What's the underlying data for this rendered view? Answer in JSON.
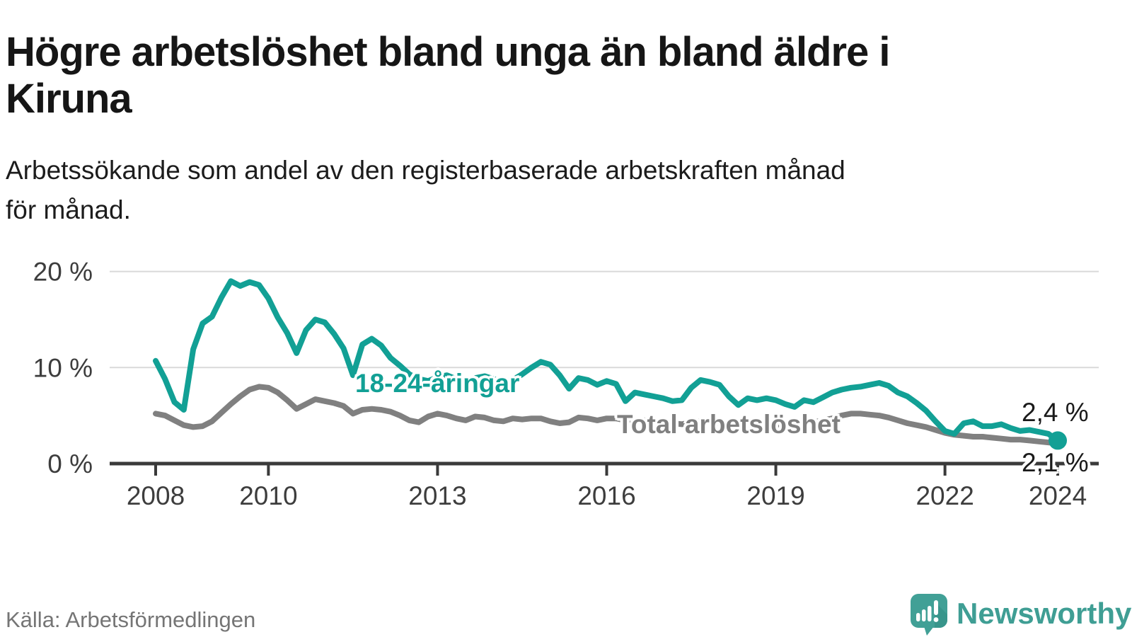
{
  "header": {
    "title_lines": [
      "Högre arbetslöshet bland unga än bland äldre i",
      "Kiruna"
    ],
    "subtitle_lines": [
      "Arbetssökande som andel av den registerbaserade arbetskraften månad",
      "för månad."
    ]
  },
  "footer": {
    "source": "Källa: Arbetsförmedlingen",
    "brand": "Newsworthy"
  },
  "colors": {
    "accent_teal": "#12a095",
    "line_gray": "#808080",
    "brand_teal": "#3f9e94",
    "axis_dark": "#3a3a3a",
    "grid_light": "#d9d9d9"
  },
  "chart_data": {
    "type": "line",
    "title": "Högre arbetslöshet bland unga än bland äldre i Kiruna",
    "xlabel": "",
    "ylabel": "",
    "unit": "%",
    "grid": "horizontal",
    "legend": "inline-labels",
    "xlim": [
      2007.2,
      2024.7
    ],
    "ylim": [
      0,
      20
    ],
    "yticks": [
      {
        "value": 0,
        "label": "0 %"
      },
      {
        "value": 10,
        "label": "10 %"
      },
      {
        "value": 20,
        "label": "20 %"
      }
    ],
    "xticks": [
      {
        "value": 2008,
        "label": "2008"
      },
      {
        "value": 2010,
        "label": "2010"
      },
      {
        "value": 2013,
        "label": "2013"
      },
      {
        "value": 2016,
        "label": "2016"
      },
      {
        "value": 2019,
        "label": "2019"
      },
      {
        "value": 2022,
        "label": "2022"
      },
      {
        "value": 2024,
        "label": "2024"
      }
    ],
    "series": [
      {
        "name": "18-24-åringar",
        "color": "#12a095",
        "end_label": "2,4 %",
        "end_value": 2.4,
        "end_dot": true,
        "x_start": 2008.0,
        "x_step": 0.16667,
        "values": [
          10.7,
          8.8,
          6.4,
          5.6,
          11.9,
          14.6,
          15.3,
          17.3,
          19.0,
          18.5,
          18.9,
          18.6,
          17.2,
          15.2,
          13.6,
          11.5,
          13.9,
          15.0,
          14.7,
          13.5,
          12.0,
          9.2,
          12.4,
          13.0,
          12.3,
          11.0,
          10.2,
          9.3,
          8.8,
          8.6,
          9.0,
          9.2,
          8.8,
          8.6,
          8.9,
          9.1,
          8.8,
          8.5,
          8.7,
          9.3,
          10.0,
          10.6,
          10.3,
          9.2,
          7.8,
          8.9,
          8.7,
          8.2,
          8.6,
          8.3,
          6.5,
          7.4,
          7.2,
          7.0,
          6.8,
          6.5,
          6.6,
          7.9,
          8.7,
          8.5,
          8.2,
          7.0,
          6.1,
          6.8,
          6.6,
          6.8,
          6.6,
          6.2,
          5.9,
          6.6,
          6.4,
          6.9,
          7.4,
          7.7,
          7.9,
          8.0,
          8.2,
          8.4,
          8.1,
          7.4,
          7.0,
          6.3,
          5.5,
          4.4,
          3.4,
          3.1,
          4.2,
          4.4,
          3.9,
          3.9,
          4.1,
          3.7,
          3.4,
          3.5,
          3.3,
          3.1,
          2.4
        ]
      },
      {
        "name": "Total arbetslöshet",
        "color": "#808080",
        "end_label": "2,1 %",
        "end_value": 2.1,
        "end_dot": false,
        "x_start": 2008.0,
        "x_step": 0.16667,
        "values": [
          5.2,
          5.0,
          4.5,
          4.0,
          3.8,
          3.9,
          4.4,
          5.3,
          6.2,
          7.0,
          7.7,
          8.0,
          7.9,
          7.4,
          6.6,
          5.7,
          6.2,
          6.7,
          6.5,
          6.3,
          6.0,
          5.2,
          5.6,
          5.7,
          5.6,
          5.4,
          5.0,
          4.5,
          4.3,
          4.9,
          5.2,
          5.0,
          4.7,
          4.5,
          4.9,
          4.8,
          4.5,
          4.4,
          4.7,
          4.6,
          4.7,
          4.7,
          4.4,
          4.2,
          4.3,
          4.8,
          4.7,
          4.5,
          4.7,
          4.7,
          4.5,
          4.4,
          4.5,
          4.4,
          4.3,
          4.2,
          4.1,
          4.3,
          4.4,
          4.3,
          4.2,
          4.0,
          3.9,
          4.0,
          4.1,
          4.0,
          4.1,
          4.0,
          4.1,
          4.2,
          4.3,
          4.5,
          4.7,
          5.0,
          5.2,
          5.2,
          5.1,
          5.0,
          4.8,
          4.5,
          4.2,
          4.0,
          3.8,
          3.5,
          3.2,
          3.0,
          2.9,
          2.8,
          2.8,
          2.7,
          2.6,
          2.5,
          2.5,
          2.4,
          2.3,
          2.2,
          2.1
        ]
      }
    ]
  }
}
